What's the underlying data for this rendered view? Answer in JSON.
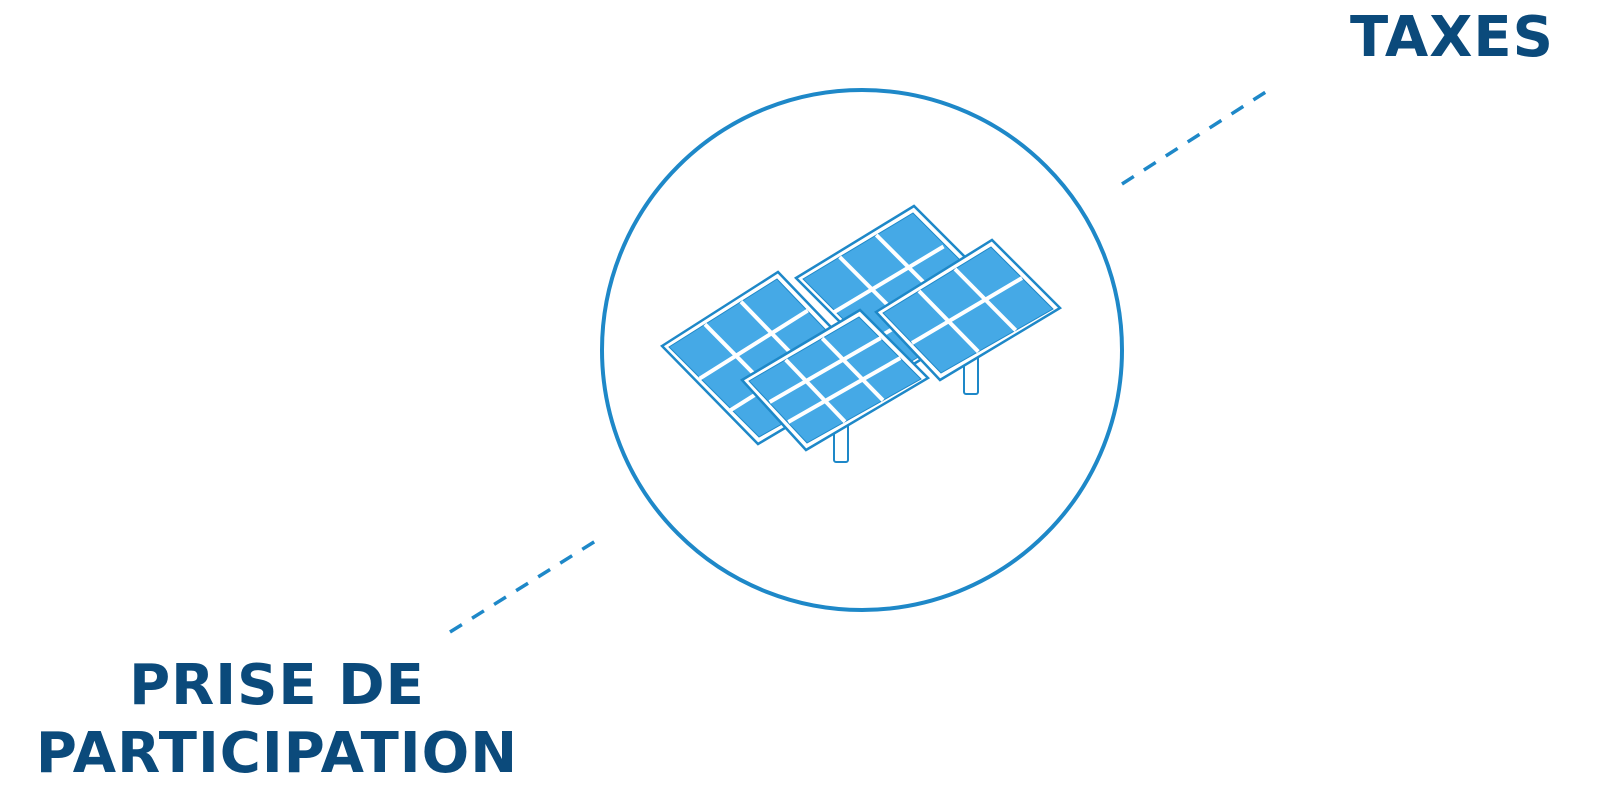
{
  "colors": {
    "label": "#0b4a7b",
    "accent": "#1e88c8",
    "panel_fill": "#45a9e6",
    "panel_frame": "#ffffff",
    "background": "#ffffff"
  },
  "center_icon": "solar-panels-icon",
  "labels": {
    "taxes": "TAXES",
    "prise_line1": "PRISE DE",
    "prise_line2": "PARTICIPATION"
  }
}
